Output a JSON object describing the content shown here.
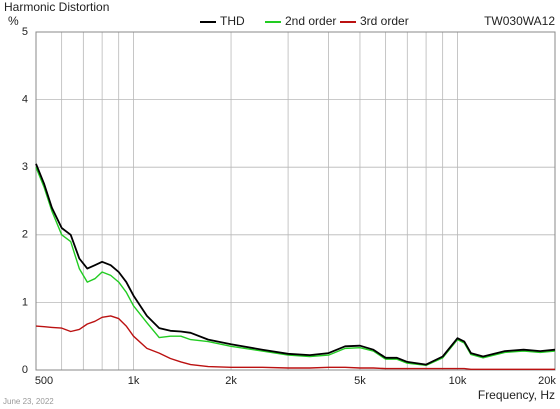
{
  "chart_data": {
    "type": "line",
    "title": "Harmonic Distortion",
    "y_label": "%",
    "x_label": "Frequency, Hz",
    "model": "TW030WA12",
    "date": "June 23, 2022",
    "log_x": true,
    "grid": true,
    "x": [
      500,
      530,
      560,
      600,
      640,
      680,
      720,
      760,
      800,
      850,
      900,
      950,
      1000,
      1100,
      1200,
      1300,
      1400,
      1500,
      1700,
      2000,
      2500,
      3000,
      3500,
      4000,
      4500,
      5000,
      5500,
      6000,
      6500,
      7000,
      8000,
      9000,
      10000,
      10500,
      11000,
      12000,
      14000,
      16000,
      18000,
      20000
    ],
    "series": [
      {
        "name": "THD",
        "color": "#000000",
        "values": [
          3.05,
          2.75,
          2.4,
          2.1,
          2.0,
          1.65,
          1.5,
          1.55,
          1.6,
          1.55,
          1.45,
          1.3,
          1.1,
          0.8,
          0.62,
          0.58,
          0.57,
          0.55,
          0.45,
          0.38,
          0.3,
          0.24,
          0.22,
          0.25,
          0.35,
          0.36,
          0.3,
          0.18,
          0.18,
          0.12,
          0.08,
          0.2,
          0.47,
          0.42,
          0.25,
          0.2,
          0.28,
          0.3,
          0.28,
          0.3
        ]
      },
      {
        "name": "2nd order",
        "color": "#22cc22",
        "values": [
          3.0,
          2.7,
          2.35,
          2.0,
          1.9,
          1.5,
          1.3,
          1.35,
          1.45,
          1.4,
          1.3,
          1.15,
          0.95,
          0.7,
          0.48,
          0.5,
          0.5,
          0.45,
          0.42,
          0.35,
          0.28,
          0.22,
          0.2,
          0.22,
          0.32,
          0.33,
          0.28,
          0.16,
          0.16,
          0.1,
          0.07,
          0.18,
          0.45,
          0.4,
          0.23,
          0.18,
          0.26,
          0.28,
          0.26,
          0.28
        ]
      },
      {
        "name": "3rd order",
        "color": "#bb1111",
        "values": [
          0.65,
          0.64,
          0.63,
          0.62,
          0.57,
          0.6,
          0.68,
          0.72,
          0.78,
          0.8,
          0.76,
          0.65,
          0.5,
          0.32,
          0.25,
          0.17,
          0.12,
          0.08,
          0.05,
          0.04,
          0.04,
          0.03,
          0.03,
          0.04,
          0.04,
          0.03,
          0.03,
          0.02,
          0.02,
          0.02,
          0.02,
          0.02,
          0.02,
          0.02,
          0.01,
          0.01,
          0.01,
          0.01,
          0.01,
          0.01
        ]
      }
    ],
    "xlim": [
      500,
      20000
    ],
    "xticks": [
      500,
      {
        "value": 1000,
        "label": "1k"
      },
      {
        "value": 2000,
        "label": "2k"
      },
      {
        "value": 5000,
        "label": "5k"
      },
      {
        "value": 10000,
        "label": "10k"
      },
      {
        "value": 20000,
        "label": "20k"
      }
    ],
    "xminorticks": [
      600,
      700,
      800,
      900,
      3000,
      4000,
      6000,
      7000,
      8000,
      9000
    ],
    "ylim": [
      0,
      5
    ],
    "yticks": [
      0,
      1,
      2,
      3,
      4,
      5
    ]
  }
}
